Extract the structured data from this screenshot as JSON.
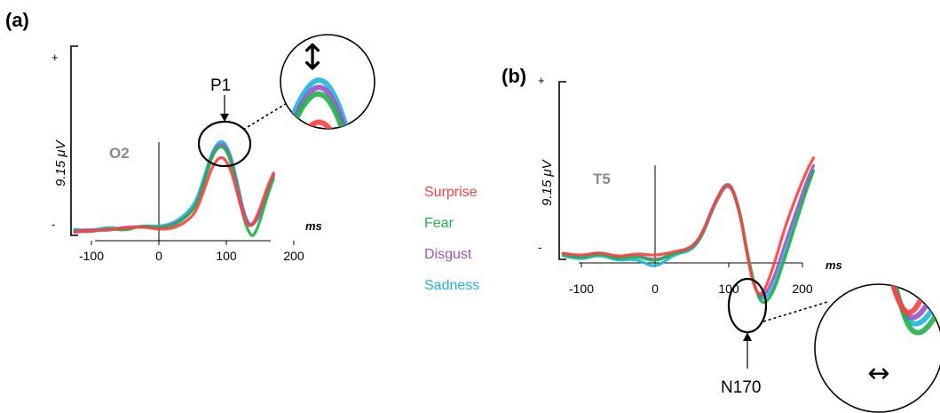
{
  "colors": {
    "surprise": "#ff4040",
    "fear": "#22b24a",
    "disgust": "#9a55c8",
    "sadness": "#1eb6dc"
  },
  "legend": [
    {
      "label": "Surprise",
      "key": "surprise"
    },
    {
      "label": "Fear",
      "key": "fear"
    },
    {
      "label": "Disgust",
      "key": "disgust"
    },
    {
      "label": "Sadness",
      "key": "sadness"
    }
  ],
  "chart_data": [
    {
      "type": "line",
      "panel_label": "(a)",
      "channel": "O2",
      "ylabel": "9.15 μV",
      "y_plus": "+",
      "y_minus": "-",
      "xunit": "ms",
      "xticks": [
        "-100",
        "0",
        "100",
        "200"
      ],
      "xlim": [
        -130,
        215
      ],
      "component": "P1",
      "component_ms": 93,
      "series": [
        {
          "name": "Surprise",
          "key": "surprise",
          "x": [
            -125,
            -100,
            -75,
            -50,
            -25,
            0,
            25,
            50,
            60,
            70,
            80,
            93,
            105,
            115,
            125,
            133,
            140,
            150,
            160,
            170
          ],
          "y": [
            0.1,
            0.2,
            0.3,
            0.4,
            0.5,
            0.3,
            0.4,
            1.2,
            2.2,
            3.6,
            5.0,
            5.7,
            4.9,
            3.2,
            1.3,
            0.5,
            0.7,
            1.8,
            3.3,
            4.4
          ]
        },
        {
          "name": "Fear",
          "key": "fear",
          "x": [
            -125,
            -100,
            -75,
            -50,
            -25,
            0,
            25,
            50,
            60,
            70,
            80,
            93,
            105,
            115,
            125,
            133,
            140,
            150,
            160,
            170
          ],
          "y": [
            0.2,
            0.1,
            0.4,
            0.2,
            0.6,
            0.4,
            0.6,
            1.6,
            2.6,
            4.2,
            5.8,
            6.5,
            5.6,
            3.5,
            1.2,
            0.1,
            -0.3,
            0.9,
            2.6,
            4.0
          ]
        },
        {
          "name": "Disgust",
          "key": "disgust",
          "x": [
            -125,
            -100,
            -75,
            -50,
            -25,
            0,
            25,
            50,
            60,
            70,
            80,
            93,
            105,
            115,
            125,
            133,
            140,
            150,
            160,
            170
          ],
          "y": [
            0.2,
            0.3,
            0.2,
            0.5,
            0.5,
            0.4,
            0.7,
            1.6,
            2.7,
            4.3,
            5.9,
            6.7,
            5.8,
            3.8,
            1.6,
            0.6,
            0.6,
            1.5,
            3.0,
            4.3
          ]
        },
        {
          "name": "Sadness",
          "key": "sadness",
          "x": [
            -125,
            -100,
            -75,
            -50,
            -25,
            0,
            25,
            50,
            60,
            70,
            80,
            93,
            105,
            115,
            125,
            133,
            140,
            150,
            160,
            170
          ],
          "y": [
            0.3,
            0.2,
            0.5,
            0.3,
            0.6,
            0.5,
            0.8,
            1.9,
            3.0,
            4.6,
            6.1,
            6.9,
            6.0,
            4.0,
            1.7,
            0.7,
            0.6,
            1.4,
            2.9,
            4.2
          ]
        }
      ]
    },
    {
      "type": "line",
      "panel_label": "(b)",
      "channel": "T5",
      "ylabel": "9.15 μV",
      "y_plus": "+",
      "y_minus": "-",
      "xunit": "ms",
      "xticks": [
        "-100",
        "0",
        "100",
        "200"
      ],
      "xlim": [
        -130,
        215
      ],
      "component": "N170",
      "component_ms": 140,
      "series": [
        {
          "name": "Surprise",
          "key": "surprise",
          "x": [
            -125,
            -100,
            -75,
            -50,
            -25,
            0,
            25,
            50,
            65,
            80,
            100,
            115,
            125,
            135,
            145,
            160,
            175,
            190,
            205,
            215
          ],
          "y": [
            0.2,
            0.0,
            0.3,
            -0.1,
            0.2,
            0.0,
            0.3,
            0.6,
            1.8,
            4.0,
            6.0,
            3.5,
            0.0,
            -2.6,
            -3.2,
            -1.0,
            2.0,
            4.4,
            6.5,
            7.6
          ]
        },
        {
          "name": "Fear",
          "key": "fear",
          "x": [
            -125,
            -100,
            -75,
            -50,
            -25,
            0,
            25,
            50,
            65,
            80,
            100,
            115,
            125,
            135,
            145,
            160,
            175,
            190,
            205,
            215
          ],
          "y": [
            0.1,
            -0.2,
            0.2,
            -0.3,
            0.0,
            -0.5,
            0.2,
            0.5,
            1.7,
            4.0,
            6.0,
            3.6,
            0.3,
            -2.3,
            -3.9,
            -3.0,
            -0.4,
            2.3,
            5.0,
            6.6
          ]
        },
        {
          "name": "Disgust",
          "key": "disgust",
          "x": [
            -125,
            -100,
            -75,
            -50,
            -25,
            0,
            25,
            50,
            65,
            80,
            100,
            115,
            125,
            135,
            145,
            160,
            175,
            190,
            205,
            215
          ],
          "y": [
            0.2,
            -0.1,
            0.3,
            -0.2,
            0.1,
            -0.4,
            0.2,
            0.6,
            1.8,
            4.1,
            6.1,
            3.6,
            0.1,
            -2.5,
            -3.4,
            -2.0,
            0.7,
            3.2,
            5.7,
            7.0
          ]
        },
        {
          "name": "Sadness",
          "key": "sadness",
          "x": [
            -125,
            -100,
            -75,
            -50,
            -25,
            0,
            25,
            50,
            65,
            80,
            100,
            115,
            125,
            135,
            145,
            160,
            175,
            190,
            205,
            215
          ],
          "y": [
            0.0,
            -0.3,
            0.1,
            -0.4,
            -0.2,
            -1.0,
            0.1,
            0.4,
            1.6,
            3.9,
            5.9,
            3.4,
            0.0,
            -2.4,
            -3.6,
            -2.6,
            -0.1,
            2.6,
            5.2,
            6.6
          ]
        }
      ]
    }
  ],
  "insets": {
    "a_peak_arrow": "↕",
    "b_latency_arrow": "↔"
  }
}
